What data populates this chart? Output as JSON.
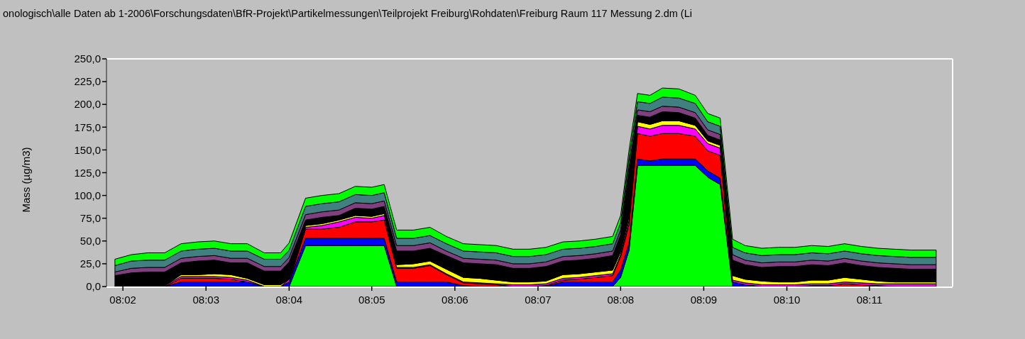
{
  "chart_data": {
    "type": "area",
    "stacked": true,
    "title": "onologisch\\alle Daten ab 1-2006\\Forschungsdaten\\BfR-Projekt\\Partikelmessungen\\Teilprojekt Freiburg\\Rohdaten\\Freiburg Raum 117 Messung 2.dm (Li",
    "ylabel": "Mass (µg/m3)",
    "x": [
      8.0317,
      8.035,
      8.0383,
      8.0417,
      8.045,
      8.0483,
      8.0517,
      8.055,
      8.0583,
      8.0617,
      8.065,
      8.0667,
      8.07,
      8.0733,
      8.0767,
      8.08,
      8.0833,
      8.0858,
      8.0883,
      8.0917,
      8.095,
      8.0983,
      8.1017,
      8.105,
      8.1083,
      8.1117,
      8.115,
      8.1183,
      8.1217,
      8.125,
      8.1283,
      8.1317,
      8.1333,
      8.135,
      8.1367,
      8.1392,
      8.1417,
      8.145,
      8.1483,
      8.1508,
      8.1533,
      8.1558,
      8.1583,
      8.1617,
      8.165,
      8.1683,
      8.1717,
      8.175,
      8.1783,
      8.1817,
      8.185,
      8.1883,
      8.1917,
      8.1967
    ],
    "series": [
      {
        "color": "#00ff00",
        "values": [
          0,
          0,
          0,
          0,
          0,
          0,
          0,
          0,
          0,
          0,
          0,
          0,
          45,
          45,
          45,
          45,
          45,
          45,
          0,
          0,
          0,
          0,
          0,
          0,
          0,
          0,
          0,
          0,
          0,
          0,
          0,
          0,
          10,
          40,
          133,
          133,
          133,
          133,
          133,
          120,
          112,
          0,
          0,
          0,
          0,
          0,
          0,
          0,
          0,
          0,
          0,
          0,
          0,
          0
        ]
      },
      {
        "color": "#0000ff",
        "values": [
          0,
          0,
          0,
          0,
          5,
          5,
          5,
          5,
          5,
          0,
          0,
          5,
          8,
          8,
          8,
          8,
          8,
          8,
          5,
          5,
          5,
          5,
          1,
          0,
          0,
          0,
          0,
          0,
          5,
          5,
          5,
          5,
          8,
          8,
          7,
          5,
          7,
          7,
          7,
          7,
          7,
          5,
          2,
          0,
          0,
          0,
          0,
          0,
          0,
          0,
          0,
          0,
          0,
          0
        ]
      },
      {
        "color": "#ff0000",
        "values": [
          0,
          0,
          0,
          0,
          4,
          4,
          4,
          3,
          0,
          0,
          0,
          0,
          10,
          10,
          12,
          18,
          18,
          20,
          15,
          15,
          18,
          8,
          3,
          3,
          2,
          0,
          0,
          1,
          2,
          3,
          5,
          7,
          15,
          20,
          28,
          27,
          28,
          28,
          25,
          22,
          25,
          0,
          0,
          0,
          0,
          0,
          1,
          1,
          3,
          2,
          1,
          0,
          0,
          0
        ]
      },
      {
        "color": "#ff00ff",
        "values": [
          1,
          1,
          1,
          1,
          2,
          2,
          2,
          2,
          2,
          0,
          0,
          3,
          2,
          4,
          6,
          5,
          4,
          5,
          1,
          1,
          1,
          1,
          1,
          1,
          1,
          2,
          2,
          2,
          2,
          2,
          2,
          2,
          2,
          5,
          8,
          8,
          9,
          9,
          8,
          8,
          8,
          2,
          2,
          2,
          2,
          2,
          2,
          2,
          2,
          2,
          2,
          3,
          3,
          3
        ]
      },
      {
        "color": "#ffff00",
        "values": [
          0,
          0,
          0,
          0,
          2,
          2,
          3,
          3,
          2,
          2,
          2,
          0,
          2,
          2,
          2,
          2,
          2,
          2,
          3,
          4,
          4,
          5,
          5,
          5,
          4,
          3,
          3,
          3,
          4,
          4,
          4,
          4,
          3,
          4,
          5,
          5,
          5,
          5,
          4,
          3,
          3,
          5,
          4,
          4,
          3,
          3,
          4,
          4,
          5,
          4,
          3,
          2,
          2,
          2
        ]
      },
      {
        "color": "#000000",
        "values": [
          11,
          14,
          15,
          15,
          13,
          15,
          15,
          13,
          17,
          15,
          15,
          19,
          6,
          7,
          5,
          8,
          8,
          8,
          15,
          14,
          14,
          15,
          16,
          16,
          17,
          15,
          15,
          16,
          15,
          15,
          15,
          16,
          19,
          49,
          7,
          8,
          10,
          9,
          8,
          6,
          6,
          17,
          16,
          15,
          17,
          17,
          17,
          16,
          16,
          15,
          15,
          15,
          14,
          14
        ]
      },
      {
        "color": "#804080",
        "values": [
          4,
          5,
          5,
          5,
          5,
          5,
          5,
          5,
          5,
          5,
          5,
          5,
          6,
          6,
          6,
          6,
          6,
          6,
          6,
          6,
          6,
          5,
          5,
          5,
          5,
          5,
          5,
          5,
          5,
          5,
          5,
          5,
          5,
          6,
          6,
          6,
          6,
          6,
          6,
          6,
          6,
          6,
          5,
          5,
          5,
          5,
          5,
          5,
          5,
          5,
          5,
          5,
          5,
          5
        ]
      },
      {
        "color": "#408080",
        "values": [
          7,
          8,
          8,
          8,
          8,
          8,
          8,
          8,
          8,
          8,
          8,
          8,
          9,
          9,
          9,
          9,
          9,
          9,
          8,
          8,
          8,
          8,
          8,
          8,
          8,
          8,
          8,
          8,
          8,
          8,
          8,
          8,
          8,
          9,
          9,
          9,
          10,
          10,
          10,
          9,
          9,
          8,
          8,
          8,
          8,
          8,
          8,
          8,
          8,
          8,
          8,
          8,
          8,
          8
        ]
      },
      {
        "color": "#00ff00",
        "values": [
          7,
          7,
          8,
          8,
          8,
          8,
          8,
          8,
          8,
          7,
          7,
          8,
          9,
          9,
          9,
          9,
          9,
          9,
          9,
          9,
          9,
          8,
          8,
          8,
          8,
          8,
          8,
          8,
          8,
          8,
          8,
          8,
          8,
          9,
          9,
          9,
          10,
          10,
          9,
          9,
          9,
          9,
          8,
          8,
          8,
          8,
          8,
          8,
          8,
          8,
          8,
          8,
          8,
          8
        ]
      }
    ],
    "xlim": [
      8.03,
      8.2
    ],
    "xticks": [
      {
        "value": 8.0333,
        "label": "08:02"
      },
      {
        "value": 8.05,
        "label": "08:03"
      },
      {
        "value": 8.0667,
        "label": "08:04"
      },
      {
        "value": 8.0833,
        "label": "08:05"
      },
      {
        "value": 8.1,
        "label": "08:06"
      },
      {
        "value": 8.1167,
        "label": "08:07"
      },
      {
        "value": 8.1333,
        "label": "08:08"
      },
      {
        "value": 8.15,
        "label": "08:09"
      },
      {
        "value": 8.1667,
        "label": "08:10"
      },
      {
        "value": 8.1833,
        "label": "08:11"
      }
    ],
    "ylim": [
      0,
      250
    ],
    "yticks": [
      {
        "value": 0,
        "label": "0,0"
      },
      {
        "value": 25,
        "label": "25,0"
      },
      {
        "value": 50,
        "label": "50,0"
      },
      {
        "value": 75,
        "label": "75,0"
      },
      {
        "value": 100,
        "label": "100,0"
      },
      {
        "value": 125,
        "label": "125,0"
      },
      {
        "value": 150,
        "label": "150,0"
      },
      {
        "value": 175,
        "label": "175,0"
      },
      {
        "value": 200,
        "label": "200,0"
      },
      {
        "value": 225,
        "label": "225,0"
      },
      {
        "value": 250,
        "label": "250,0"
      }
    ]
  }
}
